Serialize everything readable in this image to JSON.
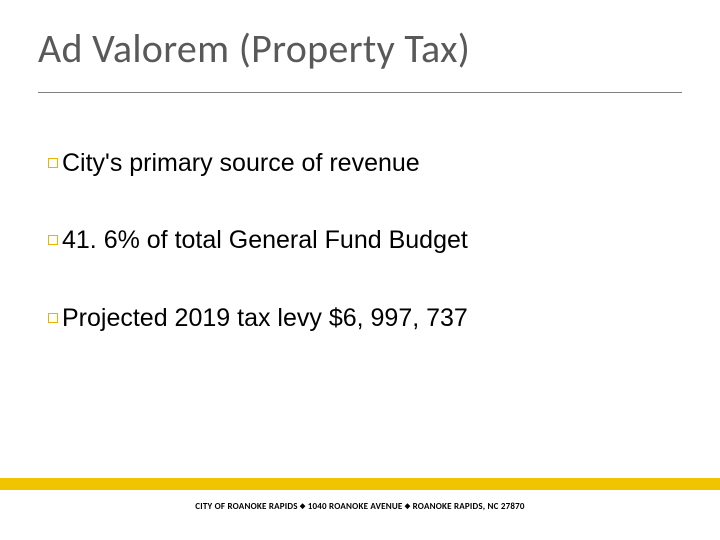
{
  "slide": {
    "title": "Ad Valorem (Property Tax)",
    "title_color": "#595959",
    "title_fontsize": 40,
    "divider_color": "#808080",
    "bullets": [
      {
        "text": "City's primary source of revenue"
      },
      {
        "text": "41. 6% of total General Fund Budget"
      },
      {
        "text": "Projected 2019 tax levy $6, 997, 737"
      }
    ],
    "bullet_marker_color": "#e8b400",
    "bullet_text_color": "#000000",
    "bullet_fontsize": 25,
    "footer": {
      "bar_color": "#f0c400",
      "text_color": "#000000",
      "fontsize": 9,
      "parts": [
        "CITY OF ROANOKE RAPIDS",
        "1040 ROANOKE AVENUE",
        "ROANOKE RAPIDS, NC 27870"
      ]
    },
    "background_color": "#ffffff"
  }
}
